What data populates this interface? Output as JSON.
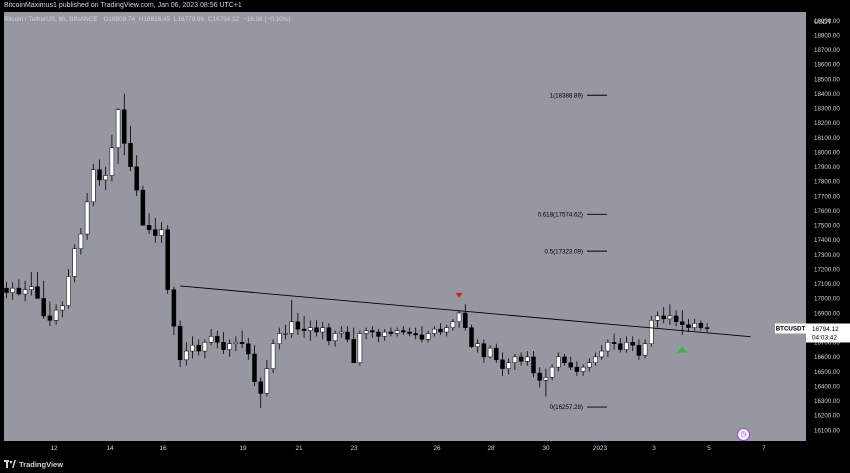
{
  "header": {
    "published_line": "BitcoinMaximus1 published on TradingView.com, Jan 06, 2023 08:56 UTC+1",
    "symbol": "Bitcoin / TetherUS, 6h, BINANCE",
    "o_label": "O",
    "o_value": "16809.74",
    "h_label": "H",
    "h_value": "16816.45",
    "l_label": "L",
    "l_value": "16779.96",
    "c_label": "C",
    "c_value": "16794.12",
    "change": "−16.06 (−0.10%)"
  },
  "footer": {
    "brand": "TradingView"
  },
  "colors": {
    "plot_bg": "#9598a1",
    "bull": "#ffffff",
    "bear": "#000000",
    "signal_down": "#e31b1b",
    "signal_up": "#38b247",
    "price_tag_bg": "#ffffff",
    "axis_bg": "#000000",
    "axis_text": "#d1d4dc"
  },
  "chart_data": {
    "type": "candlestick",
    "title": "Bitcoin / TetherUS, 6h, BINANCE",
    "currency": "USDT",
    "ylim": [
      16025,
      18958
    ],
    "y_ticks": [
      16100,
      16200,
      16300,
      16400,
      16500,
      16600,
      16700,
      16800,
      16900,
      17000,
      17100,
      17200,
      17300,
      17400,
      17500,
      17600,
      17700,
      17800,
      17900,
      18000,
      18100,
      18200,
      18300,
      18400,
      18500,
      18600,
      18700,
      18800,
      18900
    ],
    "x_ticks": [
      "12",
      "14",
      "16",
      "19",
      "21",
      "23",
      "26",
      "28",
      "30",
      "2023",
      "3",
      "5",
      "7"
    ],
    "candles": [
      [
        17070,
        17115,
        17000,
        17040
      ],
      [
        17040,
        17110,
        16990,
        17070
      ],
      [
        17070,
        17130,
        17020,
        17030
      ],
      [
        17030,
        17120,
        16980,
        17060
      ],
      [
        17060,
        17180,
        17020,
        17080
      ],
      [
        17080,
        17180,
        17020,
        17000
      ],
      [
        17000,
        17120,
        16860,
        16880
      ],
      [
        16880,
        16980,
        16810,
        16850
      ],
      [
        16850,
        16960,
        16820,
        16920
      ],
      [
        16920,
        16980,
        16870,
        16950
      ],
      [
        16950,
        17200,
        16930,
        17150
      ],
      [
        17150,
        17370,
        17110,
        17340
      ],
      [
        17340,
        17480,
        17300,
        17440
      ],
      [
        17440,
        17720,
        17400,
        17660
      ],
      [
        17660,
        17920,
        17630,
        17880
      ],
      [
        17880,
        17950,
        17770,
        17810
      ],
      [
        17810,
        17900,
        17740,
        17840
      ],
      [
        17840,
        18120,
        17800,
        18030
      ],
      [
        18030,
        18300,
        17920,
        18290
      ],
      [
        18290,
        18400,
        17980,
        18060
      ],
      [
        18060,
        18180,
        17870,
        17900
      ],
      [
        17900,
        17980,
        17700,
        17740
      ],
      [
        17740,
        17770,
        17500,
        17500
      ],
      [
        17500,
        17580,
        17440,
        17470
      ],
      [
        17470,
        17550,
        17380,
        17430
      ],
      [
        17430,
        17520,
        17380,
        17470
      ],
      [
        17470,
        17500,
        17030,
        17060
      ],
      [
        17060,
        17080,
        16750,
        16810
      ],
      [
        16810,
        16850,
        16530,
        16580
      ],
      [
        16580,
        16700,
        16540,
        16640
      ],
      [
        16640,
        16740,
        16590,
        16680
      ],
      [
        16680,
        16720,
        16610,
        16640
      ],
      [
        16640,
        16720,
        16590,
        16700
      ],
      [
        16700,
        16790,
        16680,
        16740
      ],
      [
        16740,
        16780,
        16660,
        16700
      ],
      [
        16700,
        16770,
        16620,
        16650
      ],
      [
        16650,
        16720,
        16600,
        16690
      ],
      [
        16690,
        16740,
        16640,
        16700
      ],
      [
        16700,
        16780,
        16660,
        16690
      ],
      [
        16690,
        16730,
        16580,
        16620
      ],
      [
        16620,
        16680,
        16400,
        16430
      ],
      [
        16430,
        16460,
        16250,
        16350
      ],
      [
        16350,
        16580,
        16330,
        16520
      ],
      [
        16520,
        16720,
        16490,
        16690
      ],
      [
        16690,
        16800,
        16650,
        16760
      ],
      [
        16760,
        16820,
        16720,
        16760
      ],
      [
        16760,
        16990,
        16730,
        16840
      ],
      [
        16840,
        16900,
        16750,
        16790
      ],
      [
        16790,
        16880,
        16730,
        16780
      ],
      [
        16780,
        16850,
        16710,
        16800
      ],
      [
        16800,
        16850,
        16740,
        16770
      ],
      [
        16770,
        16840,
        16720,
        16800
      ],
      [
        16800,
        16830,
        16680,
        16710
      ],
      [
        16710,
        16780,
        16670,
        16760
      ],
      [
        16760,
        16810,
        16730,
        16770
      ],
      [
        16770,
        16810,
        16700,
        16720
      ],
      [
        16720,
        16800,
        16560,
        16560
      ],
      [
        16560,
        16780,
        16540,
        16760
      ],
      [
        16760,
        16800,
        16720,
        16780
      ],
      [
        16780,
        16810,
        16730,
        16770
      ],
      [
        16770,
        16790,
        16700,
        16740
      ],
      [
        16740,
        16790,
        16710,
        16770
      ],
      [
        16770,
        16800,
        16740,
        16760
      ],
      [
        16760,
        16800,
        16740,
        16780
      ],
      [
        16780,
        16810,
        16750,
        16770
      ],
      [
        16770,
        16800,
        16740,
        16760
      ],
      [
        16760,
        16800,
        16720,
        16750
      ],
      [
        16750,
        16810,
        16700,
        16720
      ],
      [
        16720,
        16780,
        16700,
        16760
      ],
      [
        16760,
        16810,
        16740,
        16790
      ],
      [
        16790,
        16830,
        16750,
        16770
      ],
      [
        16770,
        16820,
        16740,
        16800
      ],
      [
        16800,
        16860,
        16780,
        16840
      ],
      [
        16840,
        16920,
        16800,
        16900
      ],
      [
        16900,
        16960,
        16780,
        16800
      ],
      [
        16800,
        16820,
        16660,
        16670
      ],
      [
        16670,
        16720,
        16630,
        16690
      ],
      [
        16690,
        16720,
        16560,
        16600
      ],
      [
        16600,
        16680,
        16590,
        16660
      ],
      [
        16660,
        16690,
        16560,
        16580
      ],
      [
        16580,
        16630,
        16470,
        16520
      ],
      [
        16520,
        16590,
        16480,
        16560
      ],
      [
        16560,
        16620,
        16510,
        16600
      ],
      [
        16600,
        16630,
        16540,
        16570
      ],
      [
        16570,
        16640,
        16540,
        16600
      ],
      [
        16600,
        16640,
        16460,
        16490
      ],
      [
        16490,
        16530,
        16390,
        16440
      ],
      [
        16440,
        16520,
        16330,
        16460
      ],
      [
        16460,
        16550,
        16440,
        16530
      ],
      [
        16530,
        16630,
        16500,
        16600
      ],
      [
        16600,
        16620,
        16540,
        16560
      ],
      [
        16560,
        16600,
        16510,
        16530
      ],
      [
        16530,
        16570,
        16470,
        16500
      ],
      [
        16500,
        16550,
        16470,
        16530
      ],
      [
        16530,
        16590,
        16500,
        16560
      ],
      [
        16560,
        16630,
        16540,
        16600
      ],
      [
        16600,
        16680,
        16580,
        16640
      ],
      [
        16640,
        16720,
        16600,
        16700
      ],
      [
        16700,
        16760,
        16650,
        16690
      ],
      [
        16690,
        16730,
        16630,
        16650
      ],
      [
        16650,
        16740,
        16630,
        16700
      ],
      [
        16700,
        16740,
        16640,
        16680
      ],
      [
        16680,
        16720,
        16580,
        16610
      ],
      [
        16610,
        16720,
        16590,
        16690
      ],
      [
        16690,
        16880,
        16670,
        16850
      ],
      [
        16850,
        16910,
        16800,
        16880
      ],
      [
        16880,
        16940,
        16830,
        16860
      ],
      [
        16860,
        16960,
        16820,
        16880
      ],
      [
        16880,
        16920,
        16810,
        16840
      ],
      [
        16840,
        16920,
        16750,
        16820
      ],
      [
        16820,
        16860,
        16770,
        16800
      ],
      [
        16800,
        16860,
        16780,
        16830
      ],
      [
        16830,
        16850,
        16780,
        16800
      ],
      [
        16800,
        16830,
        16770,
        16794.12
      ]
    ],
    "trendline_start_candle": 28,
    "trendline_end_candle": 120,
    "trendline_start_price": 17085,
    "trendline_end_price": 16738,
    "fib_levels": [
      {
        "label": "1(18388.89)",
        "value": 18388.89
      },
      {
        "label": "0.618(17574.62)",
        "value": 17574.62
      },
      {
        "label": "0.5(17323.09)",
        "value": 17323.09
      },
      {
        "label": "0(16257.28)",
        "value": 16257.28
      }
    ],
    "signals": [
      {
        "type": "down",
        "candle": 73,
        "price": 16990
      },
      {
        "type": "up",
        "candle": 109,
        "price": 16690
      }
    ],
    "last_price": {
      "symbol": "BTCUSDT",
      "value": "16794.12",
      "countdown": "04:03:42",
      "price": 16794.12
    }
  }
}
